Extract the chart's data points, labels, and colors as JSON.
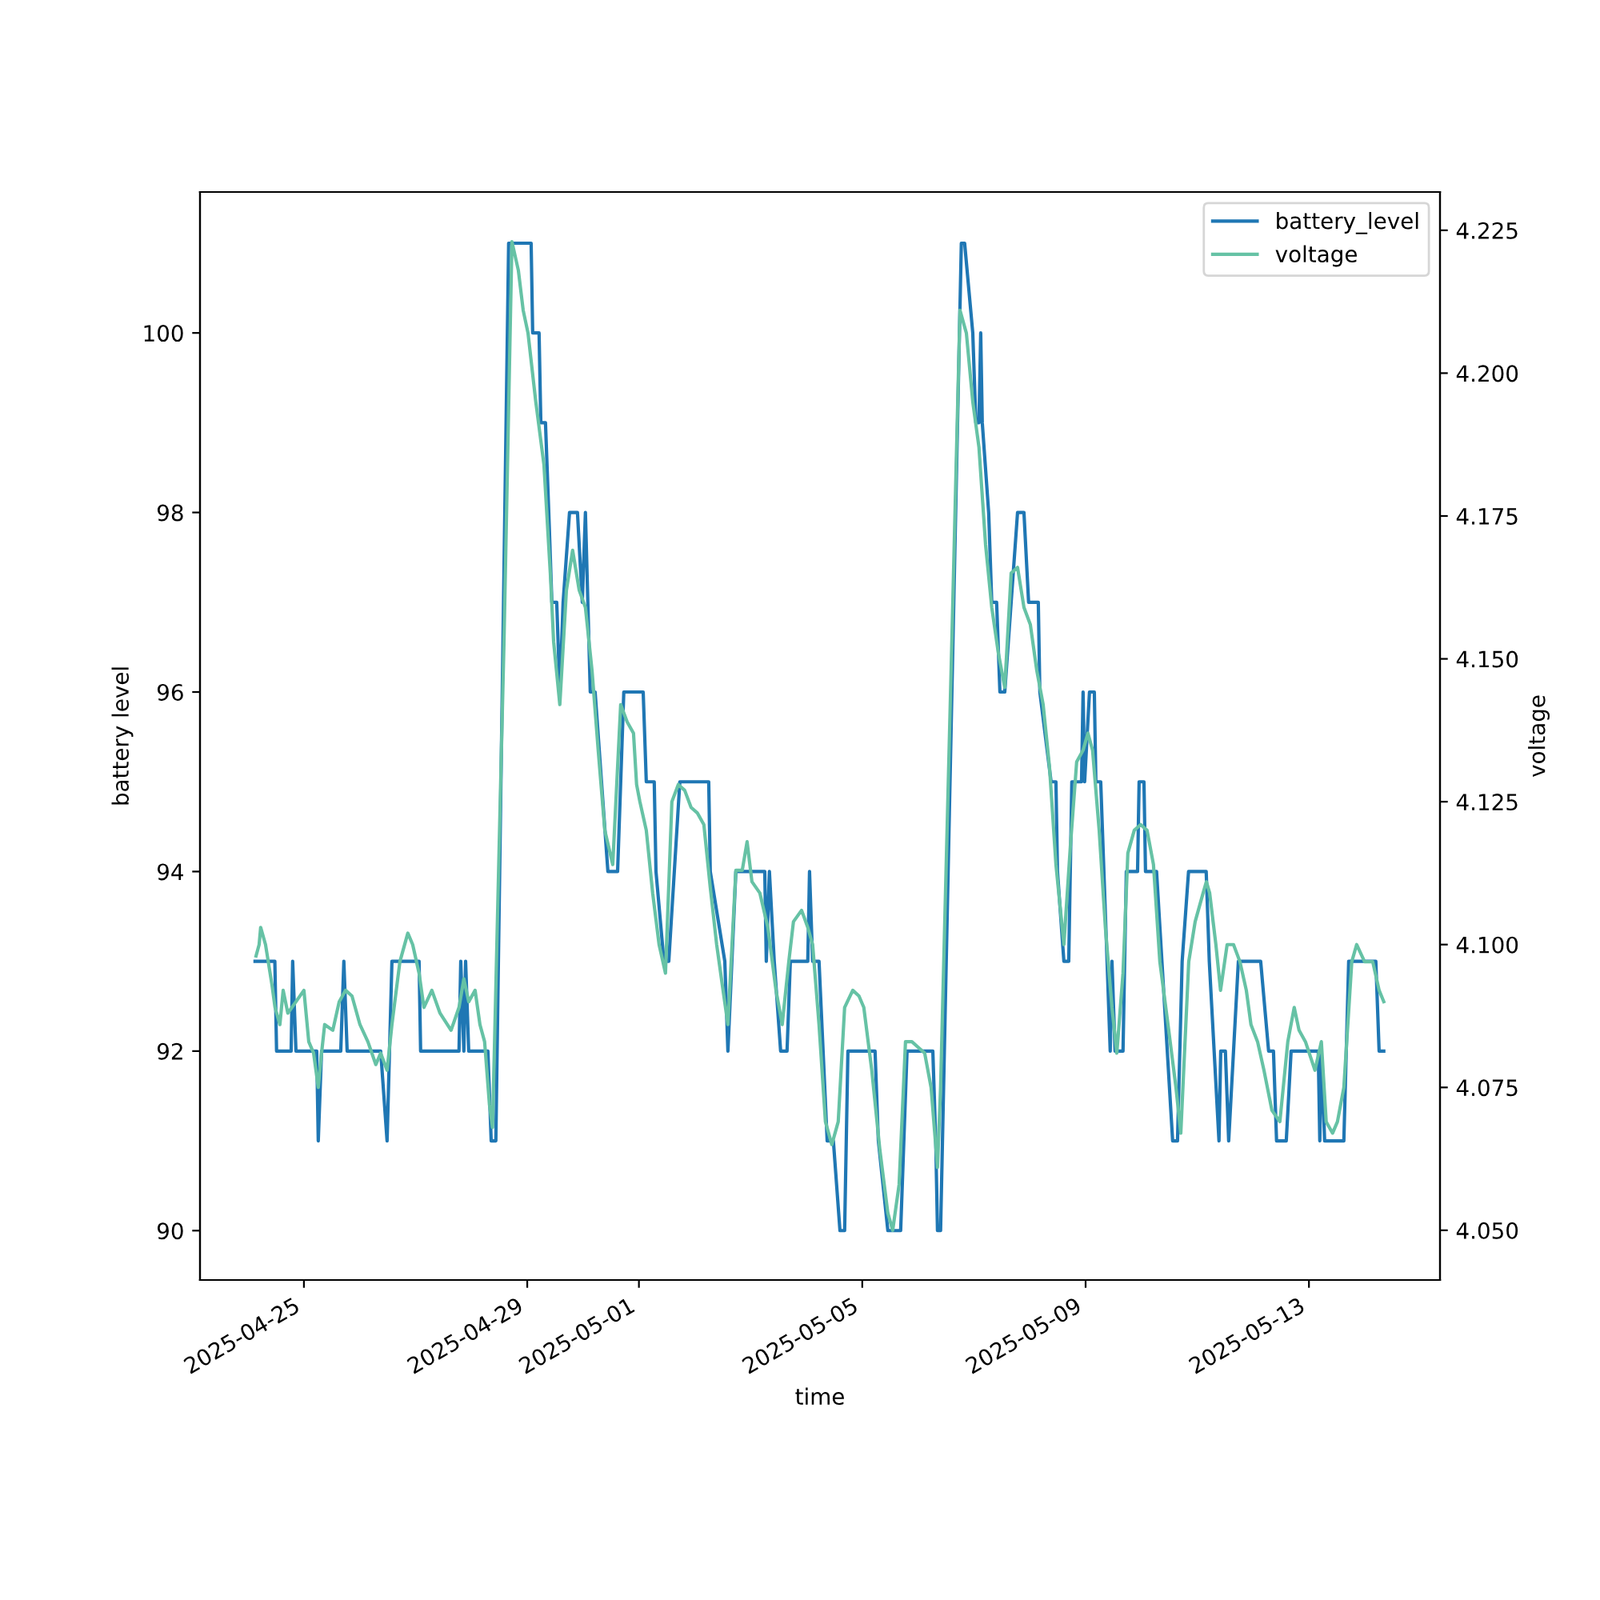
{
  "chart_data": {
    "type": "line",
    "xlabel": "time",
    "ylabel": "battery level",
    "y2label": "voltage",
    "xlim": [
      "2025-04-23T03:20",
      "2025-05-15T08:20"
    ],
    "xticks": [
      "2025-04-25",
      "2025-04-29",
      "2025-05-01",
      "2025-05-05",
      "2025-05-09",
      "2025-05-13"
    ],
    "ylim": [
      89.45,
      101.57
    ],
    "yticks": [
      90,
      92,
      94,
      96,
      98,
      100
    ],
    "y2lim": [
      4.0413,
      4.2317
    ],
    "y2ticks": [
      {
        "value": 4.05,
        "label": "4.050"
      },
      4.075,
      {
        "value": 4.1,
        "label": "4.100"
      },
      4.125,
      {
        "value": 4.15,
        "label": "4.150"
      },
      4.175,
      {
        "value": 4.2,
        "label": "4.200"
      },
      4.225
    ],
    "grid": false,
    "legend": "top right",
    "marker": "none",
    "line_style": "solid",
    "series": [
      {
        "name": "battery_level",
        "color": "#1f77b4",
        "x": [
          "2025-04-24T03:00",
          "2025-04-24T11:30",
          "2025-04-24T12:15",
          "2025-04-24T18:30",
          "2025-04-24T19:10",
          "2025-04-24T20:35",
          "2025-04-25T05:30",
          "2025-04-25T06:10",
          "2025-04-25T07:35",
          "2025-04-25T15:50",
          "2025-04-25T17:10",
          "2025-04-25T18:35",
          "2025-04-26T09:00",
          "2025-04-26T11:45",
          "2025-04-26T13:50",
          "2025-04-27T01:30",
          "2025-04-27T02:10",
          "2025-04-27T18:40",
          "2025-04-27T19:25",
          "2025-04-27T20:45",
          "2025-04-27T21:30",
          "2025-04-27T22:50",
          "2025-04-28T07:05",
          "2025-04-28T08:30",
          "2025-04-28T10:30",
          "2025-04-28T16:00",
          "2025-04-29T01:40",
          "2025-04-29T02:20",
          "2025-04-29T05:05",
          "2025-04-29T05:50",
          "2025-04-29T07:50",
          "2025-04-29T09:15",
          "2025-04-29T10:35",
          "2025-04-29T12:40",
          "2025-04-29T14:00",
          "2025-04-29T15:25",
          "2025-04-29T18:10",
          "2025-04-29T21:35",
          "2025-04-29T23:40",
          "2025-04-30T01:00",
          "2025-04-30T03:05",
          "2025-04-30T05:10",
          "2025-04-30T10:40",
          "2025-04-30T14:50",
          "2025-04-30T17:30",
          "2025-05-01T01:50",
          "2025-05-01T03:10",
          "2025-05-01T06:35",
          "2025-05-01T07:20",
          "2025-05-01T10:45",
          "2025-05-01T12:50",
          "2025-05-01T17:35",
          "2025-05-02T06:00",
          "2025-05-02T06:40",
          "2025-05-02T12:55",
          "2025-05-02T14:15",
          "2025-05-02T17:40",
          "2025-05-03T06:05",
          "2025-05-03T06:45",
          "2025-05-03T08:05",
          "2025-05-03T10:10",
          "2025-05-03T12:55",
          "2025-05-03T15:40",
          "2025-05-03T17:05",
          "2025-05-04T00:35",
          "2025-05-04T01:20",
          "2025-05-04T02:40",
          "2025-05-04T05:25",
          "2025-05-04T08:55",
          "2025-05-04T11:35",
          "2025-05-04T14:25",
          "2025-05-04T16:25",
          "2025-05-04T17:50",
          "2025-05-05T05:30",
          "2025-05-05T06:55",
          "2025-05-05T11:00",
          "2025-05-05T16:30",
          "2025-05-05T19:15",
          "2025-05-06T06:20",
          "2025-05-06T07:35",
          "2025-05-06T08:20",
          "2025-05-06T09:40",
          "2025-05-06T18:35",
          "2025-05-06T20:00",
          "2025-05-06T23:30",
          "2025-05-07T00:50",
          "2025-05-07T02:10",
          "2025-05-07T02:55",
          "2025-05-07T03:35",
          "2025-05-07T06:20",
          "2025-05-07T07:40",
          "2025-05-07T09:45",
          "2025-05-07T11:10",
          "2025-05-07T13:15",
          "2025-05-07T16:00",
          "2025-05-07T18:45",
          "2025-05-07T21:30",
          "2025-05-07T23:30",
          "2025-05-08T03:40",
          "2025-05-08T04:20",
          "2025-05-08T09:10",
          "2025-05-08T11:15",
          "2025-05-08T11:55",
          "2025-05-08T14:40",
          "2025-05-08T16:45",
          "2025-05-08T18:05",
          "2025-05-08T22:15",
          "2025-05-08T22:55",
          "2025-05-08T23:35",
          "2025-05-09T01:40",
          "2025-05-09T03:45",
          "2025-05-09T04:25",
          "2025-05-09T06:30",
          "2025-05-09T10:35",
          "2025-05-09T11:20",
          "2025-05-09T12:40",
          "2025-05-09T16:05",
          "2025-05-09T17:30",
          "2025-05-09T22:20",
          "2025-05-09T23:00",
          "2025-05-10T01:05",
          "2025-05-10T01:45",
          "2025-05-10T06:30",
          "2025-05-10T13:25",
          "2025-05-10T15:30",
          "2025-05-10T17:30",
          "2025-05-10T20:15",
          "2025-05-11T03:50",
          "2025-05-11T05:10",
          "2025-05-11T09:20",
          "2025-05-11T10:05",
          "2025-05-11T12:05",
          "2025-05-11T13:30",
          "2025-05-11T17:40",
          "2025-05-12T03:15",
          "2025-05-12T06:40",
          "2025-05-12T08:45",
          "2025-05-12T10:05",
          "2025-05-12T14:15",
          "2025-05-12T16:20",
          "2025-05-13T04:00",
          "2025-05-13T04:40",
          "2025-05-13T05:20",
          "2025-05-13T06:45",
          "2025-05-13T15:00",
          "2025-05-13T17:05",
          "2025-05-14T04:45",
          "2025-05-14T06:10",
          "2025-05-14T08:10"
        ],
        "values": [
          93,
          93,
          92,
          92,
          93,
          92,
          92,
          91,
          92,
          92,
          93,
          92,
          92,
          91,
          93,
          93,
          92,
          92,
          93,
          92,
          93,
          92,
          92,
          91,
          91,
          101,
          101,
          100,
          100,
          99,
          99,
          98,
          97,
          97,
          96,
          97,
          98,
          98,
          97,
          98,
          96,
          96,
          94,
          94,
          96,
          96,
          95,
          95,
          94,
          93,
          93,
          95,
          95,
          94,
          93,
          92,
          94,
          94,
          93,
          94,
          93,
          92,
          92,
          93,
          93,
          94,
          93,
          93,
          91,
          91,
          90,
          90,
          92,
          92,
          91,
          90,
          90,
          92,
          92,
          91,
          90,
          90,
          101,
          101,
          100,
          99,
          99,
          100,
          99,
          98,
          97,
          97,
          96,
          96,
          97,
          98,
          98,
          97,
          97,
          96,
          95,
          95,
          94,
          93,
          93,
          95,
          95,
          96,
          95,
          96,
          96,
          95,
          95,
          92,
          93,
          92,
          92,
          94,
          94,
          95,
          95,
          94,
          94,
          91,
          91,
          93,
          94,
          94,
          93,
          91,
          92,
          92,
          91,
          93,
          93,
          92,
          92,
          91,
          91,
          92,
          92,
          91,
          92,
          91,
          91,
          93,
          93,
          92,
          92
        ]
      },
      {
        "name": "voltage",
        "color": "#66c2a5",
        "axis": "y2",
        "x": [
          "2025-04-24T03:25",
          "2025-04-24T04:45",
          "2025-04-24T05:25",
          "2025-04-24T07:30",
          "2025-04-24T10:15",
          "2025-04-24T11:35",
          "2025-04-24T13:40",
          "2025-04-24T15:05",
          "2025-04-24T17:05",
          "2025-04-24T20:35",
          "2025-04-25T00:00",
          "2025-04-25T02:05",
          "2025-04-25T04:10",
          "2025-04-25T06:10",
          "2025-04-25T07:35",
          "2025-04-25T08:55",
          "2025-04-25T12:25",
          "2025-04-25T15:10",
          "2025-04-25T17:55",
          "2025-04-25T20:40",
          "2025-04-26T00:05",
          "2025-04-26T03:30",
          "2025-04-26T06:55",
          "2025-04-26T09:00",
          "2025-04-26T11:45",
          "2025-04-26T13:50",
          "2025-04-26T17:15",
          "2025-04-26T20:40",
          "2025-04-26T22:45",
          "2025-04-27T01:30",
          "2025-04-27T03:35",
          "2025-04-27T07:00",
          "2025-04-27T10:30",
          "2025-04-27T15:15",
          "2025-04-27T18:40",
          "2025-04-27T20:45",
          "2025-04-27T22:50",
          "2025-04-28T01:35",
          "2025-04-28T03:40",
          "2025-04-28T05:40",
          "2025-04-28T07:45",
          "2025-04-28T09:05",
          "2025-04-28T14:00",
          "2025-04-28T17:25",
          "2025-04-28T20:10",
          "2025-04-28T22:15",
          "2025-04-29T00:20",
          "2025-04-29T03:40",
          "2025-04-29T07:10",
          "2025-04-29T09:55",
          "2025-04-29T11:20",
          "2025-04-29T14:00",
          "2025-04-29T16:50",
          "2025-04-29T19:30",
          "2025-04-29T22:20",
          "2025-04-30T01:00",
          "2025-04-30T03:50",
          "2025-04-30T06:30",
          "2025-04-30T09:20",
          "2025-04-30T12:45",
          "2025-04-30T16:10",
          "2025-04-30T18:55",
          "2025-04-30T21:40",
          "2025-04-30T23:00",
          "2025-05-01T00:25",
          "2025-05-01T03:10",
          "2025-05-01T05:55",
          "2025-05-01T08:40",
          "2025-05-01T11:25",
          "2025-05-01T14:10",
          "2025-05-01T16:55",
          "2025-05-01T19:40",
          "2025-05-01T22:25",
          "2025-05-02T01:10",
          "2025-05-02T03:55",
          "2025-05-02T06:40",
          "2025-05-02T09:25",
          "2025-05-02T12:10",
          "2025-05-02T14:15",
          "2025-05-02T17:40",
          "2025-05-02T20:25",
          "2025-05-02T22:30",
          "2025-05-03T00:35",
          "2025-05-03T04:00",
          "2025-05-03T07:25",
          "2025-05-03T10:55",
          "2025-05-03T13:35",
          "2025-05-03T16:25",
          "2025-05-03T18:25",
          "2025-05-03T21:55",
          "2025-05-04T00:35",
          "2025-05-04T02:40",
          "2025-05-04T05:25",
          "2025-05-04T08:10",
          "2025-05-04T10:55",
          "2025-05-04T13:40",
          "2025-05-04T16:25",
          "2025-05-04T19:55",
          "2025-05-04T22:35",
          "2025-05-05T00:40",
          "2025-05-05T04:05",
          "2025-05-05T07:35",
          "2025-05-05T11:00",
          "2025-05-05T13:05",
          "2025-05-05T15:50",
          "2025-05-05T18:35",
          "2025-05-05T21:20",
          "2025-05-06T00:05",
          "2025-05-06T02:50",
          "2025-05-06T05:35",
          "2025-05-06T08:20",
          "2025-05-06T09:40",
          "2025-05-06T14:30",
          "2025-05-06T18:00",
          "2025-05-06T20:45",
          "2025-05-06T23:30",
          "2025-05-07T02:10",
          "2025-05-07T05:00",
          "2025-05-07T07:40",
          "2025-05-07T10:30",
          "2025-05-07T13:15",
          "2025-05-07T16:00",
          "2025-05-07T18:45",
          "2025-05-07T21:30",
          "2025-05-08T00:15",
          "2025-05-08T03:00",
          "2025-05-08T05:45",
          "2025-05-08T08:30",
          "2025-05-08T11:15",
          "2025-05-08T14:40",
          "2025-05-08T17:25",
          "2025-05-08T20:10",
          "2025-05-08T22:55",
          "2025-05-09T01:00",
          "2025-05-09T03:00",
          "2025-05-09T05:50",
          "2025-05-09T08:30",
          "2025-05-09T11:20",
          "2025-05-09T13:25",
          "2025-05-09T16:05",
          "2025-05-09T18:10",
          "2025-05-09T20:55",
          "2025-05-09T23:40",
          "2025-05-10T02:25",
          "2025-05-10T05:10",
          "2025-05-10T07:55",
          "2025-05-10T11:25",
          "2025-05-10T14:50",
          "2025-05-10T16:55",
          "2025-05-10T20:20",
          "2025-05-10T23:05",
          "2025-05-11T02:30",
          "2025-05-11T03:55",
          "2025-05-11T05:20",
          "2025-05-11T08:00",
          "2025-05-11T10:00",
          "2025-05-11T12:50",
          "2025-05-11T15:35",
          "2025-05-11T18:20",
          "2025-05-11T21:05",
          "2025-05-11T23:05",
          "2025-05-12T01:55",
          "2025-05-12T04:40",
          "2025-05-12T08:05",
          "2025-05-12T11:30",
          "2025-05-12T14:55",
          "2025-05-12T17:40",
          "2025-05-12T19:45",
          "2025-05-12T22:30",
          "2025-05-13T02:35",
          "2025-05-13T05:20",
          "2025-05-13T07:25",
          "2025-05-13T10:10",
          "2025-05-13T12:15",
          "2025-05-13T15:00",
          "2025-05-13T18:25",
          "2025-05-13T20:30",
          "2025-05-13T23:55",
          "2025-05-14T03:25",
          "2025-05-14T06:10",
          "2025-05-14T08:10"
        ],
        "values": [
          4.098,
          4.1,
          4.103,
          4.1,
          4.093,
          4.089,
          4.086,
          4.092,
          4.088,
          4.09,
          4.092,
          4.083,
          4.081,
          4.075,
          4.081,
          4.086,
          4.085,
          4.09,
          4.092,
          4.091,
          4.086,
          4.083,
          4.079,
          4.081,
          4.078,
          4.086,
          4.097,
          4.102,
          4.1,
          4.095,
          4.089,
          4.092,
          4.088,
          4.085,
          4.089,
          4.094,
          4.09,
          4.092,
          4.086,
          4.083,
          4.072,
          4.068,
          4.153,
          4.223,
          4.218,
          4.211,
          4.207,
          4.195,
          4.184,
          4.165,
          4.153,
          4.142,
          4.162,
          4.169,
          4.162,
          4.159,
          4.148,
          4.134,
          4.12,
          4.114,
          4.142,
          4.139,
          4.137,
          4.128,
          4.125,
          4.12,
          4.109,
          4.1,
          4.095,
          4.125,
          4.128,
          4.127,
          4.124,
          4.123,
          4.121,
          4.11,
          4.1,
          4.092,
          4.086,
          4.113,
          4.113,
          4.118,
          4.111,
          4.109,
          4.103,
          4.092,
          4.086,
          4.097,
          4.104,
          4.106,
          4.103,
          4.1,
          4.086,
          4.069,
          4.065,
          4.069,
          4.089,
          4.092,
          4.091,
          4.089,
          4.078,
          4.064,
          4.053,
          4.05,
          4.058,
          4.083,
          4.083,
          4.082,
          4.081,
          4.075,
          4.061,
          4.075,
          4.153,
          4.211,
          4.207,
          4.195,
          4.187,
          4.17,
          4.159,
          4.151,
          4.145,
          4.165,
          4.166,
          4.159,
          4.156,
          4.148,
          4.142,
          4.131,
          4.114,
          4.1,
          4.117,
          4.132,
          4.134,
          4.137,
          4.134,
          4.12,
          4.103,
          4.089,
          4.081,
          4.095,
          4.116,
          4.12,
          4.121,
          4.12,
          4.114,
          4.097,
          4.086,
          4.075,
          4.067,
          4.097,
          4.104,
          4.109,
          4.111,
          4.109,
          4.1,
          4.092,
          4.1,
          4.1,
          4.097,
          4.092,
          4.086,
          4.083,
          4.078,
          4.071,
          4.069,
          4.083,
          4.089,
          4.085,
          4.083,
          4.078,
          4.083,
          4.069,
          4.067,
          4.069,
          4.075,
          4.097,
          4.1,
          4.097,
          4.097,
          4.092,
          4.09
        ]
      }
    ]
  }
}
